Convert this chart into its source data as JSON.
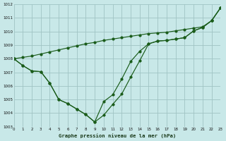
{
  "title": "Graphe pression niveau de la mer (hPa)",
  "bg_color": "#c8e8e8",
  "grid_color": "#a0c4c4",
  "line_color": "#1a5c1a",
  "xlim": [
    0,
    23
  ],
  "ylim": [
    1003,
    1012
  ],
  "yticks": [
    1003,
    1004,
    1005,
    1006,
    1007,
    1008,
    1009,
    1010,
    1011,
    1012
  ],
  "xticks": [
    0,
    1,
    2,
    3,
    4,
    5,
    6,
    7,
    8,
    9,
    10,
    11,
    12,
    13,
    14,
    15,
    16,
    17,
    18,
    19,
    20,
    21,
    22,
    23
  ],
  "line1_x": [
    0,
    1,
    2,
    3,
    4,
    5,
    6,
    7,
    8,
    9,
    10,
    11,
    12,
    13,
    14,
    15,
    16,
    17,
    18,
    19,
    20,
    21,
    22,
    23
  ],
  "line1_y": [
    1008.0,
    1008.1,
    1008.2,
    1008.35,
    1008.5,
    1008.65,
    1008.8,
    1008.95,
    1009.1,
    1009.2,
    1009.35,
    1009.45,
    1009.55,
    1009.65,
    1009.75,
    1009.85,
    1009.9,
    1009.95,
    1010.05,
    1010.15,
    1010.25,
    1010.35,
    1010.8,
    1011.75
  ],
  "line2_x": [
    0,
    1,
    2,
    3,
    4,
    5,
    6,
    7,
    8,
    9,
    10,
    11,
    12,
    13,
    14,
    15,
    16,
    17,
    18,
    19,
    20,
    21,
    22,
    23
  ],
  "line2_y": [
    1008.0,
    1007.5,
    1007.1,
    1007.05,
    1006.2,
    1005.0,
    1004.7,
    1004.3,
    1003.9,
    1003.35,
    1003.85,
    1004.65,
    1005.4,
    1006.65,
    1007.85,
    1009.1,
    1009.3,
    1009.35,
    1009.45,
    1009.55,
    1010.05,
    1010.3,
    1010.8,
    1011.75
  ],
  "line3_x": [
    0,
    1,
    2,
    3,
    4,
    5,
    6,
    7,
    8,
    9,
    10,
    11,
    12,
    13,
    14,
    15,
    16,
    17,
    18,
    19,
    20,
    21,
    22,
    23
  ],
  "line3_y": [
    1008.0,
    1007.5,
    1007.1,
    1007.05,
    1006.2,
    1005.0,
    1004.7,
    1004.3,
    1003.9,
    1003.35,
    1004.85,
    1005.35,
    1006.5,
    1007.8,
    1008.55,
    1009.1,
    1009.3,
    1009.35,
    1009.45,
    1009.55,
    1010.05,
    1010.3,
    1010.8,
    1011.75
  ]
}
